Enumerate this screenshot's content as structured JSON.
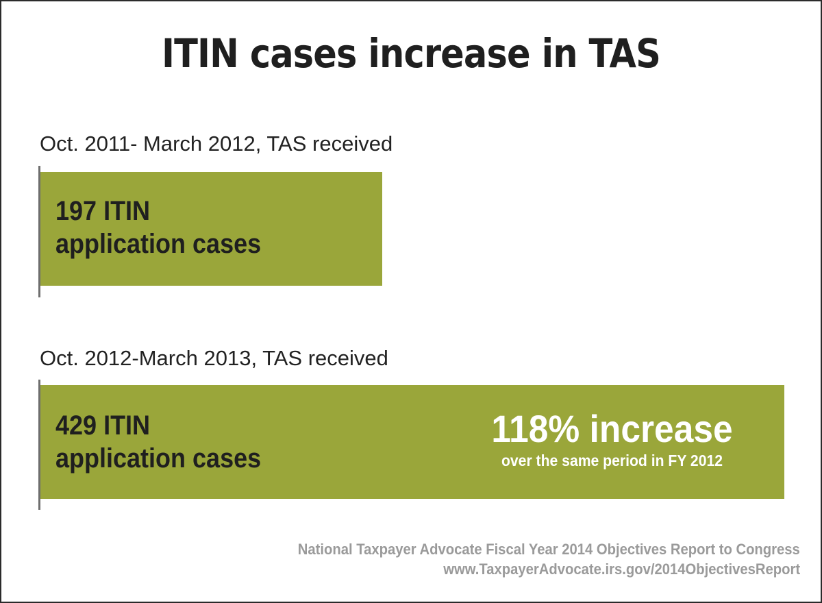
{
  "chart_data": {
    "type": "bar",
    "orientation": "horizontal",
    "title": "ITIN cases increase in TAS",
    "categories": [
      "Oct. 2011- March 2012, TAS received",
      "Oct. 2012-March 2013, TAS received"
    ],
    "values": [
      197,
      429
    ],
    "bar_labels": [
      [
        "197 ITIN",
        "application cases"
      ],
      [
        "429 ITIN",
        "application cases"
      ]
    ],
    "annotation": {
      "headline": "118% increase",
      "detail": "over the same period in FY 2012"
    },
    "source": [
      "National Taxpayer Advocate Fiscal Year 2014 Objectives Report to Congress",
      "www.TaxpayerAdvocate.irs.gov/2014ObjectivesReport"
    ],
    "colors": {
      "bar": "#9aa63a",
      "text": "#1f1f1f",
      "source_text": "#9a9a9a"
    },
    "grid": false
  }
}
